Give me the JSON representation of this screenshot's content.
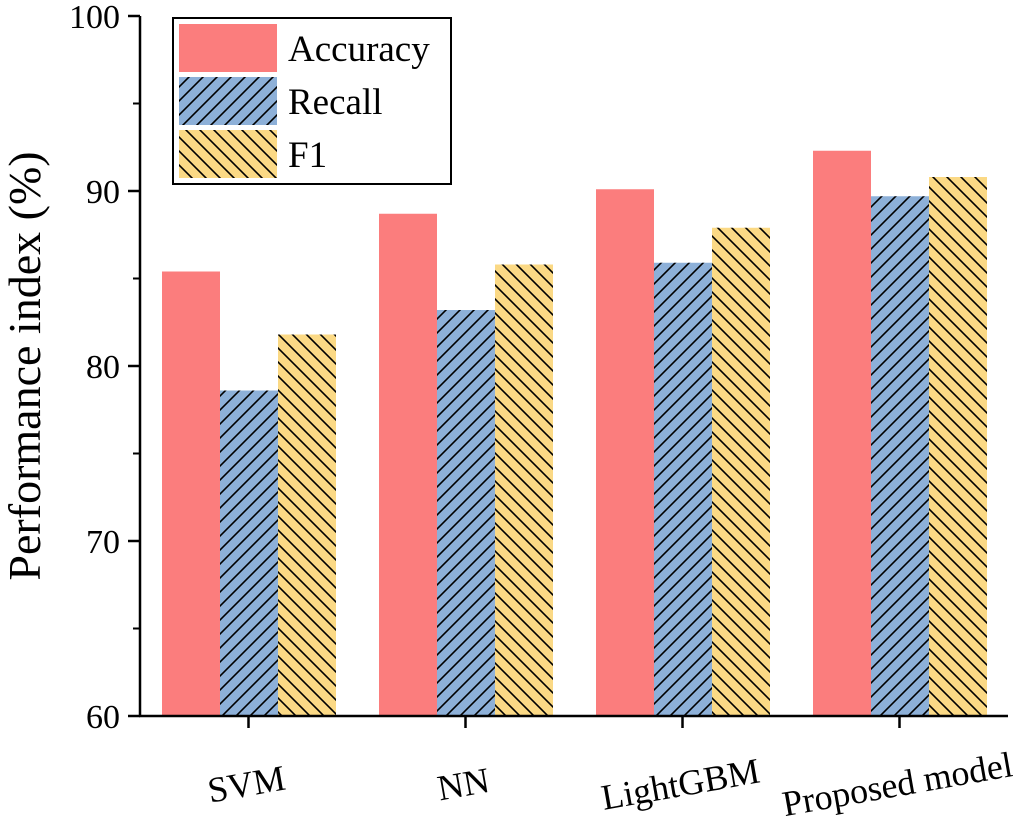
{
  "chart_data": {
    "type": "bar",
    "title": "",
    "xlabel": "",
    "ylabel": "Performance index (%)",
    "ylim": [
      60,
      100
    ],
    "yticks": [
      60,
      70,
      80,
      90,
      100
    ],
    "categories": [
      "SVM",
      "NN",
      "LightGBM",
      "Proposed model"
    ],
    "series": [
      {
        "name": "Accuracy",
        "values": [
          85.4,
          88.7,
          90.1,
          92.3
        ],
        "color": "#fb7d7d",
        "pattern": "none"
      },
      {
        "name": "Recall",
        "values": [
          78.6,
          83.2,
          85.9,
          89.7
        ],
        "color": "#8db0d8",
        "pattern": "forward-hatch"
      },
      {
        "name": "F1",
        "values": [
          81.8,
          85.8,
          87.9,
          90.8
        ],
        "color": "#fbd985",
        "pattern": "back-hatch"
      }
    ],
    "legend": "top-left",
    "grid": false
  }
}
